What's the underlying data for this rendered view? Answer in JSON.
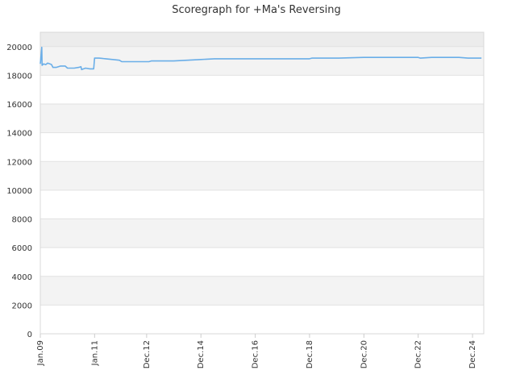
{
  "chart_data": {
    "type": "line",
    "title": "Scoregraph for +Ma's Reversing",
    "xlabel": "",
    "ylabel": "",
    "ylim": [
      0,
      21000
    ],
    "xlim": [
      "2009-01-01",
      "2025-05-01"
    ],
    "grid": true,
    "y_ticks": [
      0,
      2000,
      4000,
      6000,
      8000,
      10000,
      12000,
      14000,
      16000,
      18000,
      20000
    ],
    "x_ticks": [
      {
        "label": "Jan.09",
        "date": "2009-01-01"
      },
      {
        "label": "Jan.11",
        "date": "2011-01-01"
      },
      {
        "label": "Dec.12",
        "date": "2012-12-01"
      },
      {
        "label": "Dec.14",
        "date": "2014-12-01"
      },
      {
        "label": "Dec.16",
        "date": "2016-12-01"
      },
      {
        "label": "Dec.18",
        "date": "2018-12-01"
      },
      {
        "label": "Dec.20",
        "date": "2020-12-01"
      },
      {
        "label": "Dec.22",
        "date": "2022-12-01"
      },
      {
        "label": "Dec.24",
        "date": "2024-12-01"
      }
    ],
    "series": [
      {
        "color": "#6aaee8",
        "points": [
          [
            "2009-01-01",
            18800
          ],
          [
            "2009-01-20",
            19950
          ],
          [
            "2009-01-25",
            18700
          ],
          [
            "2009-02-15",
            18800
          ],
          [
            "2009-03-15",
            18750
          ],
          [
            "2009-04-10",
            18850
          ],
          [
            "2009-05-10",
            18800
          ],
          [
            "2009-06-01",
            18750
          ],
          [
            "2009-06-20",
            18550
          ],
          [
            "2009-08-01",
            18550
          ],
          [
            "2009-10-01",
            18650
          ],
          [
            "2009-12-01",
            18650
          ],
          [
            "2010-01-01",
            18500
          ],
          [
            "2010-04-01",
            18500
          ],
          [
            "2010-06-01",
            18550
          ],
          [
            "2010-07-01",
            18600
          ],
          [
            "2010-07-10",
            18400
          ],
          [
            "2010-09-01",
            18500
          ],
          [
            "2010-11-01",
            18450
          ],
          [
            "2010-12-20",
            18450
          ],
          [
            "2011-01-01",
            19200
          ],
          [
            "2011-03-01",
            19200
          ],
          [
            "2011-06-01",
            19150
          ],
          [
            "2011-09-01",
            19100
          ],
          [
            "2011-12-01",
            19050
          ],
          [
            "2012-01-01",
            18950
          ],
          [
            "2012-06-01",
            18950
          ],
          [
            "2013-01-01",
            18950
          ],
          [
            "2013-02-01",
            19000
          ],
          [
            "2013-12-01",
            19000
          ],
          [
            "2014-06-01",
            19050
          ],
          [
            "2014-12-01",
            19100
          ],
          [
            "2015-06-01",
            19150
          ],
          [
            "2016-01-01",
            19150
          ],
          [
            "2017-01-01",
            19150
          ],
          [
            "2018-01-01",
            19150
          ],
          [
            "2018-12-01",
            19150
          ],
          [
            "2019-01-01",
            19200
          ],
          [
            "2020-01-01",
            19200
          ],
          [
            "2020-12-01",
            19250
          ],
          [
            "2021-06-01",
            19250
          ],
          [
            "2022-12-01",
            19250
          ],
          [
            "2023-01-01",
            19200
          ],
          [
            "2023-06-01",
            19250
          ],
          [
            "2024-06-01",
            19250
          ],
          [
            "2024-10-01",
            19200
          ],
          [
            "2025-04-01",
            19200
          ]
        ]
      }
    ]
  }
}
